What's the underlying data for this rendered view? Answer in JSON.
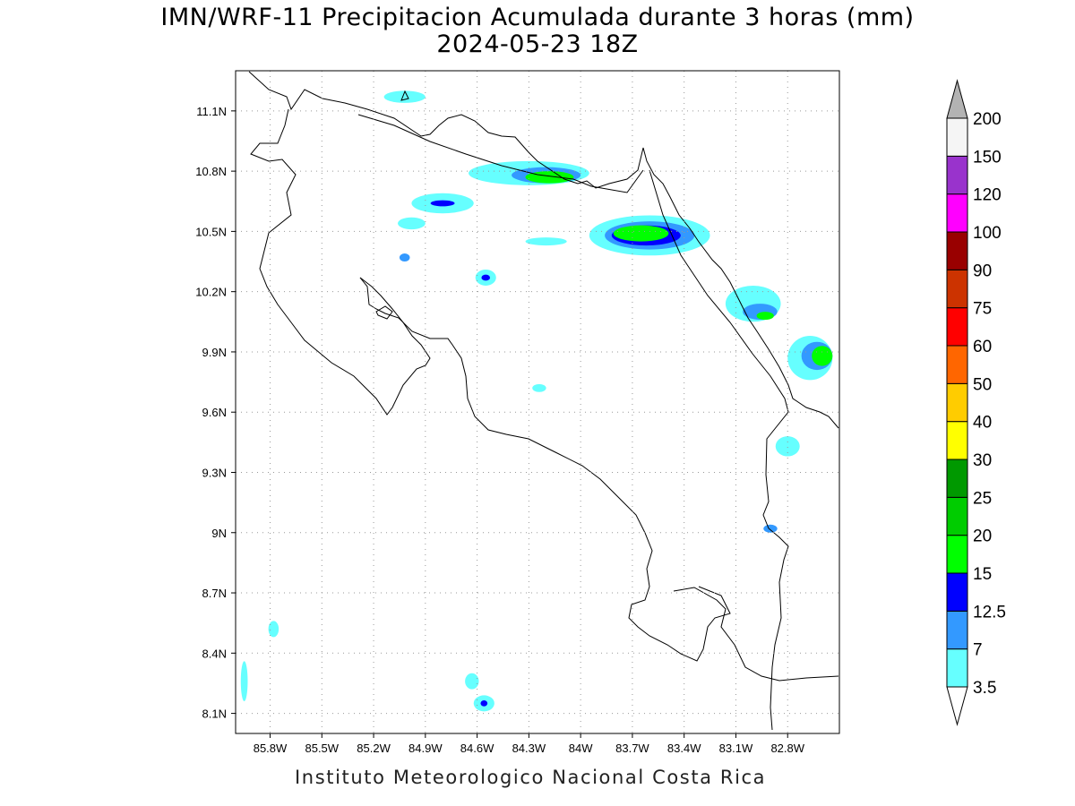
{
  "title": {
    "line1": "IMN/WRF-11 Precipitacion Acumulada durante 3 horas (mm)",
    "line2": "2024-05-23 18Z"
  },
  "footer": "Instituto Meteorologico Nacional Costa Rica",
  "map": {
    "lon_range": [
      -86.0,
      -82.5
    ],
    "lat_range": [
      8.0,
      11.3
    ],
    "grid": true,
    "lat_ticks": [
      {
        "value": 11.1,
        "label": "11.1N"
      },
      {
        "value": 10.8,
        "label": "10.8N"
      },
      {
        "value": 10.5,
        "label": "10.5N"
      },
      {
        "value": 10.2,
        "label": "10.2N"
      },
      {
        "value": 9.9,
        "label": "9.9N"
      },
      {
        "value": 9.6,
        "label": "9.6N"
      },
      {
        "value": 9.3,
        "label": "9.3N"
      },
      {
        "value": 9.0,
        "label": "9N"
      },
      {
        "value": 8.7,
        "label": "8.7N"
      },
      {
        "value": 8.4,
        "label": "8.4N"
      },
      {
        "value": 8.1,
        "label": "8.1N"
      }
    ],
    "lon_ticks": [
      {
        "value": -85.8,
        "label": "85.8W"
      },
      {
        "value": -85.5,
        "label": "85.5W"
      },
      {
        "value": -85.2,
        "label": "85.2W"
      },
      {
        "value": -84.9,
        "label": "84.9W"
      },
      {
        "value": -84.6,
        "label": "84.6W"
      },
      {
        "value": -84.3,
        "label": "84.3W"
      },
      {
        "value": -84.0,
        "label": "84W"
      },
      {
        "value": -83.7,
        "label": "83.7W"
      },
      {
        "value": -83.4,
        "label": "83.4W"
      },
      {
        "value": -83.1,
        "label": "83.1W"
      },
      {
        "value": -82.8,
        "label": "82.8W"
      }
    ]
  },
  "colorbar": {
    "levels": [
      "3.5",
      "7",
      "12.5",
      "15",
      "20",
      "25",
      "30",
      "40",
      "50",
      "60",
      "75",
      "90",
      "100",
      "120",
      "150",
      "200"
    ],
    "colors": [
      "#66ffff",
      "#3399ff",
      "#0000ff",
      "#00ff00",
      "#00cc00",
      "#009900",
      "#ffff00",
      "#ffcc00",
      "#ff6600",
      "#ff0000",
      "#cc3300",
      "#990000",
      "#ff00ff",
      "#9933cc",
      "#f5f5f5",
      "#b3b3b3"
    ],
    "lower_cap_color": "#ffffff",
    "upper_cap_color": "#b3b3b3"
  },
  "precip_areas": [
    {
      "lon": -84.3,
      "lat": 10.79,
      "rx": 0.35,
      "ry": 0.06,
      "level": 0
    },
    {
      "lon": -84.2,
      "lat": 10.78,
      "rx": 0.2,
      "ry": 0.04,
      "level": 1
    },
    {
      "lon": -84.18,
      "lat": 10.77,
      "rx": 0.14,
      "ry": 0.03,
      "level": 3
    },
    {
      "lon": -84.8,
      "lat": 10.64,
      "rx": 0.18,
      "ry": 0.05,
      "level": 0
    },
    {
      "lon": -84.8,
      "lat": 10.64,
      "rx": 0.07,
      "ry": 0.015,
      "level": 2
    },
    {
      "lon": -83.6,
      "lat": 10.48,
      "rx": 0.35,
      "ry": 0.1,
      "level": 0
    },
    {
      "lon": -83.6,
      "lat": 10.48,
      "rx": 0.26,
      "ry": 0.07,
      "level": 1
    },
    {
      "lon": -83.62,
      "lat": 10.48,
      "rx": 0.2,
      "ry": 0.05,
      "level": 2
    },
    {
      "lon": -83.65,
      "lat": 10.49,
      "rx": 0.16,
      "ry": 0.04,
      "level": 3
    },
    {
      "lon": -83.0,
      "lat": 10.14,
      "rx": 0.16,
      "ry": 0.09,
      "level": 0
    },
    {
      "lon": -82.96,
      "lat": 10.1,
      "rx": 0.1,
      "ry": 0.04,
      "level": 1
    },
    {
      "lon": -82.93,
      "lat": 10.08,
      "rx": 0.05,
      "ry": 0.02,
      "level": 3
    },
    {
      "lon": -82.67,
      "lat": 9.87,
      "rx": 0.13,
      "ry": 0.11,
      "level": 0
    },
    {
      "lon": -82.63,
      "lat": 9.88,
      "rx": 0.09,
      "ry": 0.07,
      "level": 1
    },
    {
      "lon": -82.6,
      "lat": 9.88,
      "rx": 0.06,
      "ry": 0.05,
      "level": 3
    },
    {
      "lon": -84.55,
      "lat": 10.27,
      "rx": 0.06,
      "ry": 0.04,
      "level": 0
    },
    {
      "lon": -84.55,
      "lat": 10.27,
      "rx": 0.025,
      "ry": 0.015,
      "level": 2
    },
    {
      "lon": -84.24,
      "lat": 9.72,
      "rx": 0.04,
      "ry": 0.02,
      "level": 0
    },
    {
      "lon": -85.02,
      "lat": 10.37,
      "rx": 0.03,
      "ry": 0.02,
      "level": 1
    },
    {
      "lon": -82.8,
      "lat": 9.43,
      "rx": 0.07,
      "ry": 0.05,
      "level": 0
    },
    {
      "lon": -82.9,
      "lat": 9.02,
      "rx": 0.04,
      "ry": 0.02,
      "level": 1
    },
    {
      "lon": -84.56,
      "lat": 8.15,
      "rx": 0.06,
      "ry": 0.04,
      "level": 0
    },
    {
      "lon": -84.56,
      "lat": 8.15,
      "rx": 0.02,
      "ry": 0.015,
      "level": 2
    },
    {
      "lon": -84.63,
      "lat": 8.26,
      "rx": 0.04,
      "ry": 0.04,
      "level": 0
    },
    {
      "lon": -85.78,
      "lat": 8.52,
      "rx": 0.03,
      "ry": 0.04,
      "level": 0
    },
    {
      "lon": -85.95,
      "lat": 8.26,
      "rx": 0.02,
      "ry": 0.1,
      "level": 0
    },
    {
      "lon": -84.98,
      "lat": 10.54,
      "rx": 0.08,
      "ry": 0.03,
      "level": 0
    },
    {
      "lon": -85.02,
      "lat": 11.17,
      "rx": 0.12,
      "ry": 0.03,
      "level": 0
    },
    {
      "lon": -84.2,
      "lat": 10.45,
      "rx": 0.12,
      "ry": 0.02,
      "level": 0
    }
  ]
}
